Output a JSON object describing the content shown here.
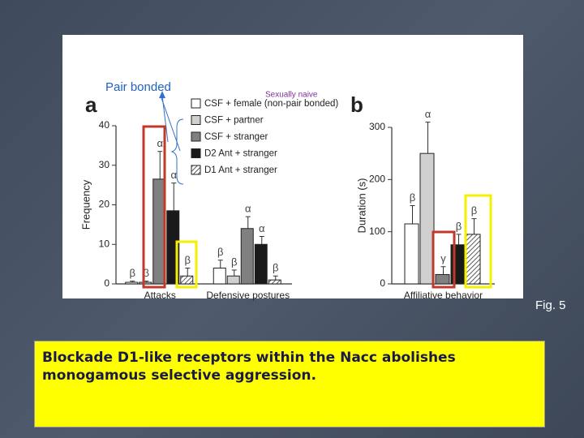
{
  "annotations": {
    "pair_bonded": "Pair bonded",
    "sexually_naive": "Sexually naive"
  },
  "figure_label": "Fig. 5",
  "caption": "Blockade D1-like receptors within the Nacc abolishes monogamous selective aggression.",
  "chart_data": [
    {
      "type": "bar",
      "panel": "a",
      "y_label": "Frequency",
      "categories": [
        "Attacks",
        "Defensive postures"
      ],
      "ylim": [
        0,
        40
      ],
      "yticks": [
        0,
        10,
        20,
        30,
        40
      ],
      "legend": true,
      "series": [
        {
          "name": "CSF + female (non-pair bonded)",
          "color": "#ffffff",
          "values": [
            0.4,
            4
          ],
          "errors": [
            0.3,
            2
          ],
          "sig": [
            "β",
            "β"
          ]
        },
        {
          "name": "CSF + partner",
          "color": "#d0d0d0",
          "values": [
            0.4,
            2
          ],
          "errors": [
            0.3,
            1.5
          ],
          "sig": [
            "β",
            "β"
          ]
        },
        {
          "name": "CSF + stranger",
          "color": "#808080",
          "values": [
            26.5,
            14
          ],
          "errors": [
            7,
            3
          ],
          "sig": [
            "α",
            "α"
          ]
        },
        {
          "name": "D2 Ant + stranger",
          "color": "#1a1a1a",
          "values": [
            18.5,
            10
          ],
          "errors": [
            7,
            2
          ],
          "sig": [
            "α",
            "α"
          ]
        },
        {
          "name": "D1 Ant + stranger",
          "color": "#ffffff",
          "pattern": "hatch",
          "values": [
            2,
            1
          ],
          "errors": [
            2,
            1
          ],
          "sig": [
            "β",
            "β"
          ]
        }
      ]
    },
    {
      "type": "bar",
      "panel": "b",
      "y_label": "Duration (s)",
      "categories": [
        "Affiliative behavior"
      ],
      "ylim": [
        0,
        300
      ],
      "yticks": [
        0,
        100,
        200,
        300
      ],
      "legend": false,
      "series": [
        {
          "color": "#ffffff",
          "values": [
            115
          ],
          "errors": [
            35
          ],
          "sig": [
            "β"
          ]
        },
        {
          "color": "#d0d0d0",
          "values": [
            250
          ],
          "errors": [
            60
          ],
          "sig": [
            "α"
          ]
        },
        {
          "color": "#808080",
          "values": [
            18
          ],
          "errors": [
            15
          ],
          "sig": [
            "γ"
          ]
        },
        {
          "color": "#1a1a1a",
          "values": [
            75
          ],
          "errors": [
            20
          ],
          "sig": [
            "β"
          ]
        },
        {
          "color": "#ffffff",
          "pattern": "hatch",
          "values": [
            95
          ],
          "errors": [
            30
          ],
          "sig": [
            "β"
          ]
        }
      ]
    }
  ]
}
